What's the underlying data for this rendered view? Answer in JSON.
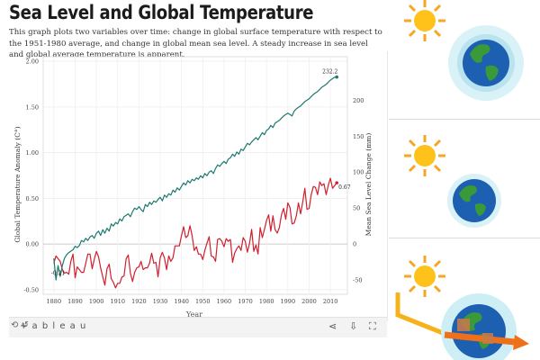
{
  "page": {
    "title": "Sea Level and Global Temperature",
    "subtitle": "This graph plots two variables over time: change in global surface temperature with respect to the 1951-1980 average, and change in global mean sea level. A steady increase in sea level and global average temperature is apparent."
  },
  "toolbar": {
    "logo": "+ a b l e a u",
    "left_icon": "⟲ ↺",
    "icons": [
      "share-icon",
      "download-icon",
      "fullscreen-icon"
    ]
  },
  "chart_data": {
    "type": "line",
    "x": [
      1880,
      1881,
      1882,
      1883,
      1884,
      1885,
      1886,
      1887,
      1888,
      1889,
      1890,
      1891,
      1892,
      1893,
      1894,
      1895,
      1896,
      1897,
      1898,
      1899,
      1900,
      1901,
      1902,
      1903,
      1904,
      1905,
      1906,
      1907,
      1908,
      1909,
      1910,
      1911,
      1912,
      1913,
      1914,
      1915,
      1916,
      1917,
      1918,
      1919,
      1920,
      1921,
      1922,
      1923,
      1924,
      1925,
      1926,
      1927,
      1928,
      1929,
      1930,
      1931,
      1932,
      1933,
      1934,
      1935,
      1936,
      1937,
      1938,
      1939,
      1940,
      1941,
      1942,
      1943,
      1944,
      1945,
      1946,
      1947,
      1948,
      1949,
      1950,
      1951,
      1952,
      1953,
      1954,
      1955,
      1956,
      1957,
      1958,
      1959,
      1960,
      1961,
      1962,
      1963,
      1964,
      1965,
      1966,
      1967,
      1968,
      1969,
      1970,
      1971,
      1972,
      1973,
      1974,
      1975,
      1976,
      1977,
      1978,
      1979,
      1980,
      1981,
      1982,
      1983,
      1984,
      1985,
      1986,
      1987,
      1988,
      1989,
      1990,
      1991,
      1992,
      1993,
      1994,
      1995,
      1996,
      1997,
      1998,
      1999,
      2000,
      2001,
      2002,
      2003,
      2004,
      2005,
      2006,
      2007,
      2008,
      2009,
      2010,
      2011,
      2012,
      2013
    ],
    "series": [
      {
        "name": "Global Temperature Anomaly (C°)",
        "axis": "left",
        "color": "#d0202e",
        "values": [
          -0.21,
          -0.13,
          -0.16,
          -0.19,
          -0.28,
          -0.32,
          -0.31,
          -0.33,
          -0.19,
          -0.11,
          -0.37,
          -0.25,
          -0.28,
          -0.31,
          -0.31,
          -0.21,
          -0.11,
          -0.11,
          -0.27,
          -0.17,
          -0.08,
          -0.14,
          -0.26,
          -0.36,
          -0.45,
          -0.27,
          -0.22,
          -0.38,
          -0.42,
          -0.48,
          -0.43,
          -0.43,
          -0.36,
          -0.35,
          -0.16,
          -0.12,
          -0.32,
          -0.41,
          -0.31,
          -0.26,
          -0.25,
          -0.19,
          -0.28,
          -0.26,
          -0.26,
          -0.21,
          -0.1,
          -0.21,
          -0.2,
          -0.36,
          -0.15,
          -0.09,
          -0.15,
          -0.28,
          -0.13,
          -0.19,
          -0.15,
          -0.02,
          -0.02,
          -0.02,
          0.09,
          0.19,
          0.07,
          0.09,
          0.2,
          0.09,
          -0.07,
          -0.03,
          -0.11,
          -0.11,
          -0.17,
          -0.07,
          0.01,
          0.08,
          -0.13,
          -0.14,
          -0.19,
          0.05,
          0.06,
          0.03,
          -0.03,
          0.06,
          0.03,
          0.05,
          -0.2,
          -0.1,
          -0.05,
          -0.02,
          -0.07,
          0.07,
          0.03,
          -0.09,
          0.01,
          0.16,
          -0.08,
          -0.01,
          -0.11,
          0.18,
          0.07,
          0.16,
          0.26,
          0.32,
          0.14,
          0.31,
          0.16,
          0.12,
          0.18,
          0.32,
          0.39,
          0.27,
          0.45,
          0.4,
          0.22,
          0.23,
          0.31,
          0.45,
          0.33,
          0.46,
          0.61,
          0.38,
          0.39,
          0.54,
          0.63,
          0.62,
          0.54,
          0.68,
          0.64,
          0.66,
          0.54,
          0.64,
          0.72,
          0.61,
          0.64,
          0.67
        ]
      },
      {
        "name": "Mean Sea Level Change (mm)",
        "axis": "right",
        "color": "#1e7a6f",
        "values": [
          -20,
          -50,
          -30,
          -45,
          -30,
          -20,
          -15,
          -12,
          -10,
          -8,
          -3,
          -5,
          -2,
          5,
          3,
          8,
          5,
          10,
          12,
          8,
          15,
          18,
          12,
          20,
          15,
          22,
          18,
          28,
          25,
          30,
          28,
          35,
          32,
          38,
          40,
          42,
          38,
          45,
          50,
          48,
          52,
          48,
          45,
          55,
          52,
          58,
          55,
          60,
          58,
          62,
          65,
          60,
          68,
          65,
          70,
          68,
          75,
          72,
          78,
          75,
          80,
          85,
          82,
          88,
          85,
          90,
          88,
          92,
          90,
          95,
          92,
          98,
          95,
          100,
          102,
          98,
          105,
          110,
          108,
          112,
          115,
          112,
          118,
          120,
          125,
          122,
          128,
          125,
          132,
          130,
          135,
          140,
          138,
          142,
          145,
          148,
          145,
          150,
          155,
          152,
          158,
          160,
          165,
          162,
          168,
          170,
          172,
          175,
          178,
          180,
          182,
          180,
          178,
          185,
          188,
          190,
          192,
          195,
          198,
          200,
          202,
          205,
          208,
          210,
          212,
          215,
          218,
          220,
          222,
          225,
          228,
          230,
          232,
          232.2
        ]
      }
    ],
    "xlabel": "Year",
    "ylabel_left": "Global Temperature Anomaly (C°)",
    "ylabel_right": "Mean Sea Level Change (mm)",
    "xlim": [
      1875,
      2018
    ],
    "x_ticks": [
      1880,
      1890,
      1900,
      1910,
      1920,
      1930,
      1940,
      1950,
      1960,
      1970,
      1980,
      1990,
      2000,
      2010
    ],
    "ylim_left": [
      -0.55,
      2.05
    ],
    "left_ticks": [
      "-0.50",
      "0.00",
      "0.50",
      "1.00",
      "1.50",
      "2.00"
    ],
    "right_ticks": [
      "-50",
      "0",
      "50",
      "100",
      "150",
      "200"
    ],
    "annotations": {
      "temp_first": "-0.21",
      "temp_last": "0.67",
      "sea_last": "232.2"
    },
    "grid": true
  }
}
